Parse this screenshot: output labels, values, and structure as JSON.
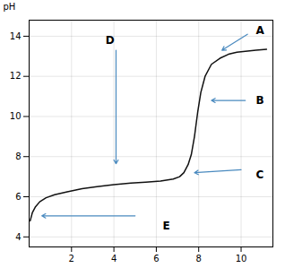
{
  "chart_data": {
    "type": "line",
    "x": [
      0.05,
      0.15,
      0.3,
      0.5,
      0.8,
      1.2,
      1.8,
      2.5,
      3.2,
      4.0,
      4.8,
      5.5,
      6.2,
      6.8,
      7.1,
      7.3,
      7.5,
      7.65,
      7.8,
      7.95,
      8.1,
      8.3,
      8.6,
      9.0,
      9.4,
      9.8,
      10.2,
      10.7,
      11.2
    ],
    "values": [
      4.8,
      5.2,
      5.5,
      5.75,
      5.95,
      6.1,
      6.25,
      6.4,
      6.5,
      6.6,
      6.68,
      6.73,
      6.78,
      6.88,
      7.0,
      7.2,
      7.6,
      8.1,
      9.0,
      10.2,
      11.2,
      12.0,
      12.6,
      12.9,
      13.1,
      13.2,
      13.25,
      13.3,
      13.35
    ],
    "color": "#111111",
    "ylabel": "pH",
    "xlim": [
      0,
      11.5
    ],
    "ylim": [
      3.5,
      14.8
    ],
    "xticks": [
      2,
      4,
      6,
      8,
      10
    ],
    "yticks": [
      4,
      6,
      8,
      10,
      12,
      14
    ],
    "grid": true,
    "annotations": [
      {
        "text": "A",
        "x": 10.7,
        "y": 14.3,
        "arrow_start": [
          10.3,
          14.1
        ],
        "arrow_end": [
          9.1,
          13.3
        ],
        "color": "#4a8abf"
      },
      {
        "text": "B",
        "x": 10.7,
        "y": 10.8,
        "arrow_start": [
          10.2,
          10.8
        ],
        "arrow_end": [
          8.6,
          10.8
        ],
        "color": "#4a8abf"
      },
      {
        "text": "C",
        "x": 10.7,
        "y": 7.1,
        "arrow_start": [
          10.0,
          7.35
        ],
        "arrow_end": [
          7.8,
          7.2
        ],
        "color": "#4a8abf"
      },
      {
        "text": "D",
        "x": 3.6,
        "y": 13.8,
        "arrow_start": [
          4.1,
          13.3
        ],
        "arrow_end": [
          4.1,
          7.65
        ],
        "color": "#4a8abf"
      },
      {
        "text": "E",
        "x": 6.3,
        "y": 4.55,
        "arrow_start": [
          5.0,
          5.05
        ],
        "arrow_end": [
          0.6,
          5.05
        ],
        "color": "#4a8abf"
      }
    ]
  }
}
